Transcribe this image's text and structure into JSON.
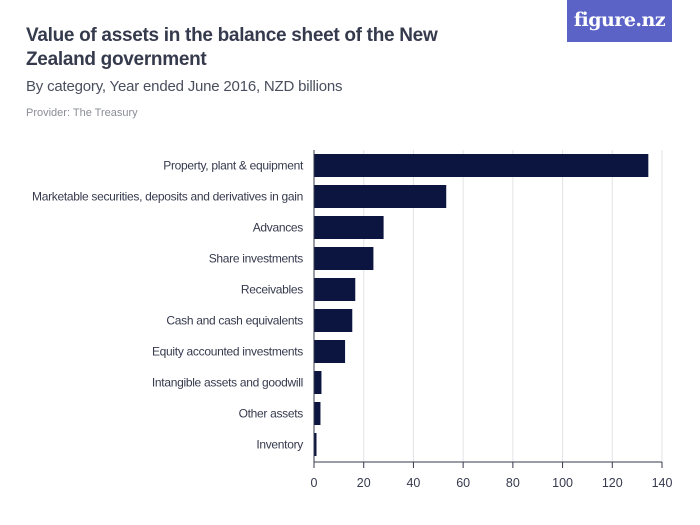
{
  "header": {
    "title": "Value of assets in the balance sheet of the New Zealand government",
    "subtitle": "By category, Year ended June 2016, NZD billions",
    "provider": "Provider: The Treasury",
    "logo": "figure.nz"
  },
  "colors": {
    "bar": "#0c1540",
    "grid": "#e3e3e6",
    "axis": "#353a4d",
    "logo_bg": "#5b63c7"
  },
  "chart_data": {
    "type": "bar",
    "orientation": "horizontal",
    "categories": [
      "Property, plant & equipment",
      "Marketable securities, deposits and derivatives in gain",
      "Advances",
      "Share investments",
      "Receivables",
      "Cash and cash equivalents",
      "Equity accounted investments",
      "Intangible assets and goodwill",
      "Other assets",
      "Inventory"
    ],
    "values": [
      134.5,
      53.2,
      28.0,
      23.9,
      16.6,
      15.4,
      12.5,
      3.0,
      2.6,
      1.0
    ],
    "xlim": [
      0,
      140
    ],
    "xticks": [
      0,
      20,
      40,
      60,
      80,
      100,
      120,
      140
    ],
    "title": "Value of assets in the balance sheet of the New Zealand government",
    "subtitle": "By category, Year ended June 2016, NZD billions",
    "xlabel": "",
    "ylabel": "",
    "grid": true,
    "legend": "none"
  }
}
